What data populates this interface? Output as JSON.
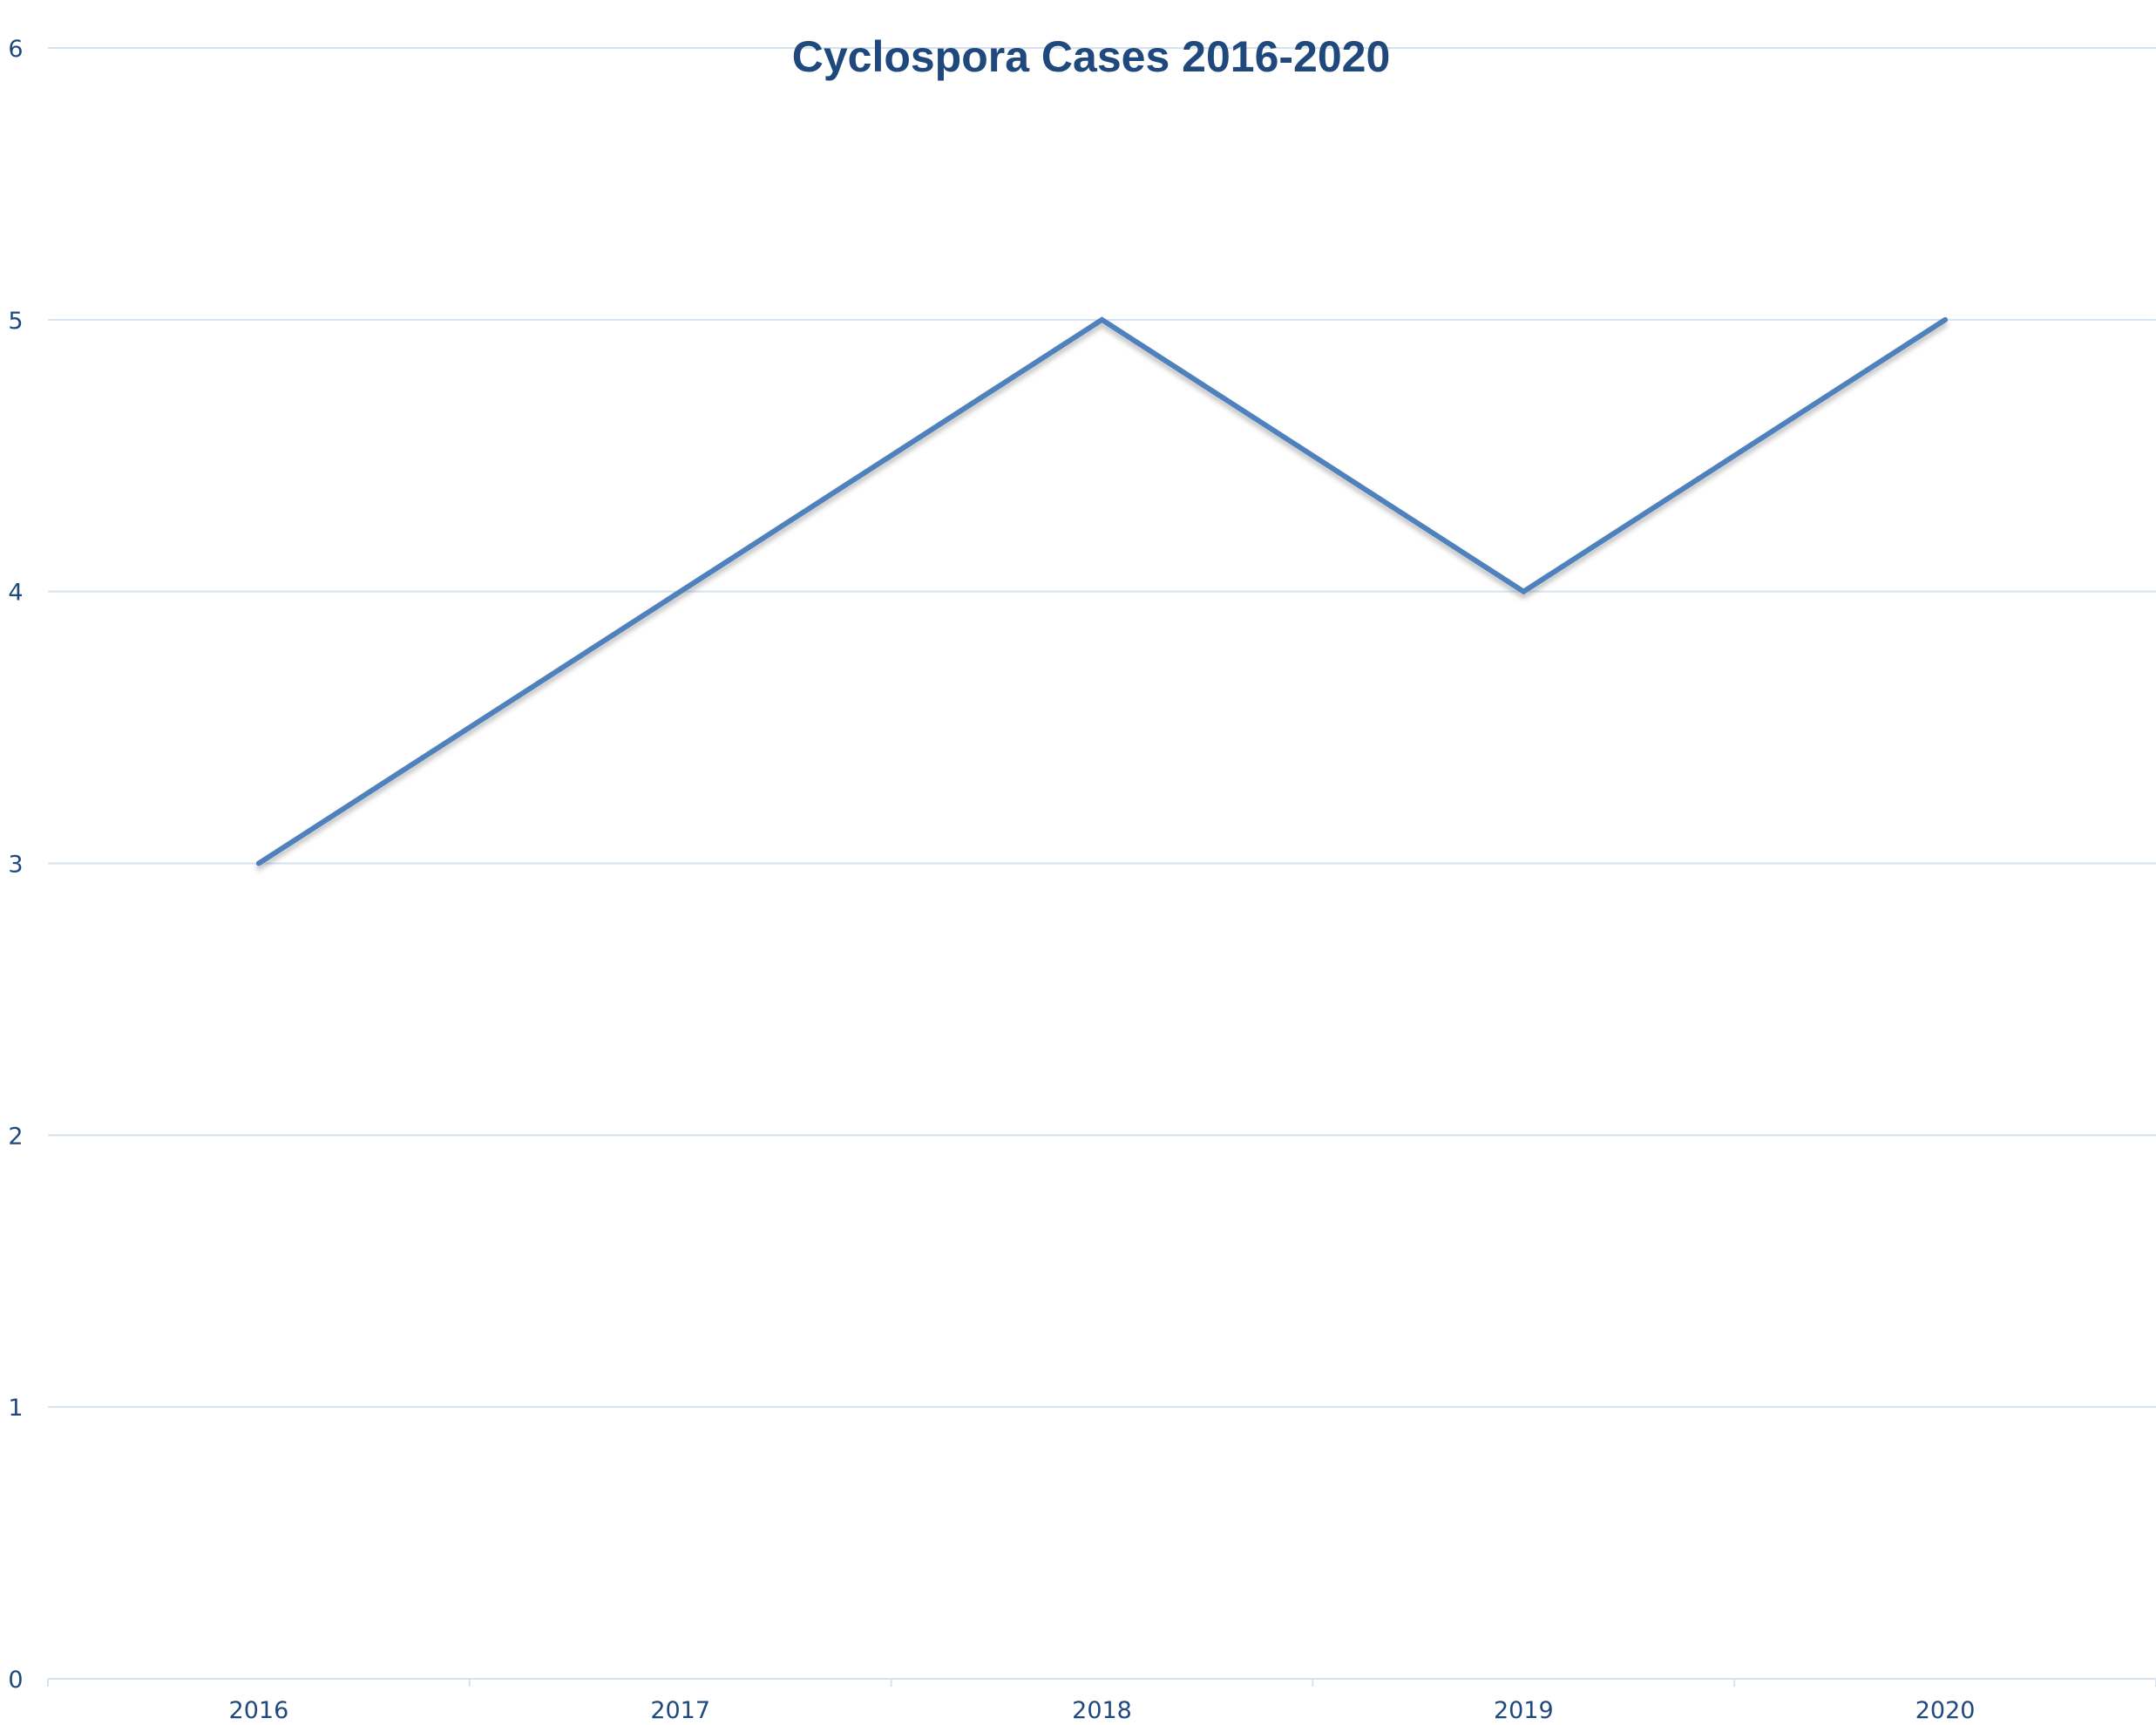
{
  "chart_data": {
    "type": "line",
    "title": "Cyclospora Cases 2016-2020",
    "categories": [
      "2016",
      "2017",
      "2018",
      "2019",
      "2020"
    ],
    "series": [
      {
        "values": [
          3,
          4,
          5,
          4,
          5
        ],
        "color": "#4f81bd"
      }
    ],
    "ylim": [
      0,
      6
    ],
    "yticks": [
      0,
      1,
      2,
      3,
      4,
      5,
      6
    ],
    "grid": true,
    "xlabel": "",
    "ylabel": ""
  }
}
